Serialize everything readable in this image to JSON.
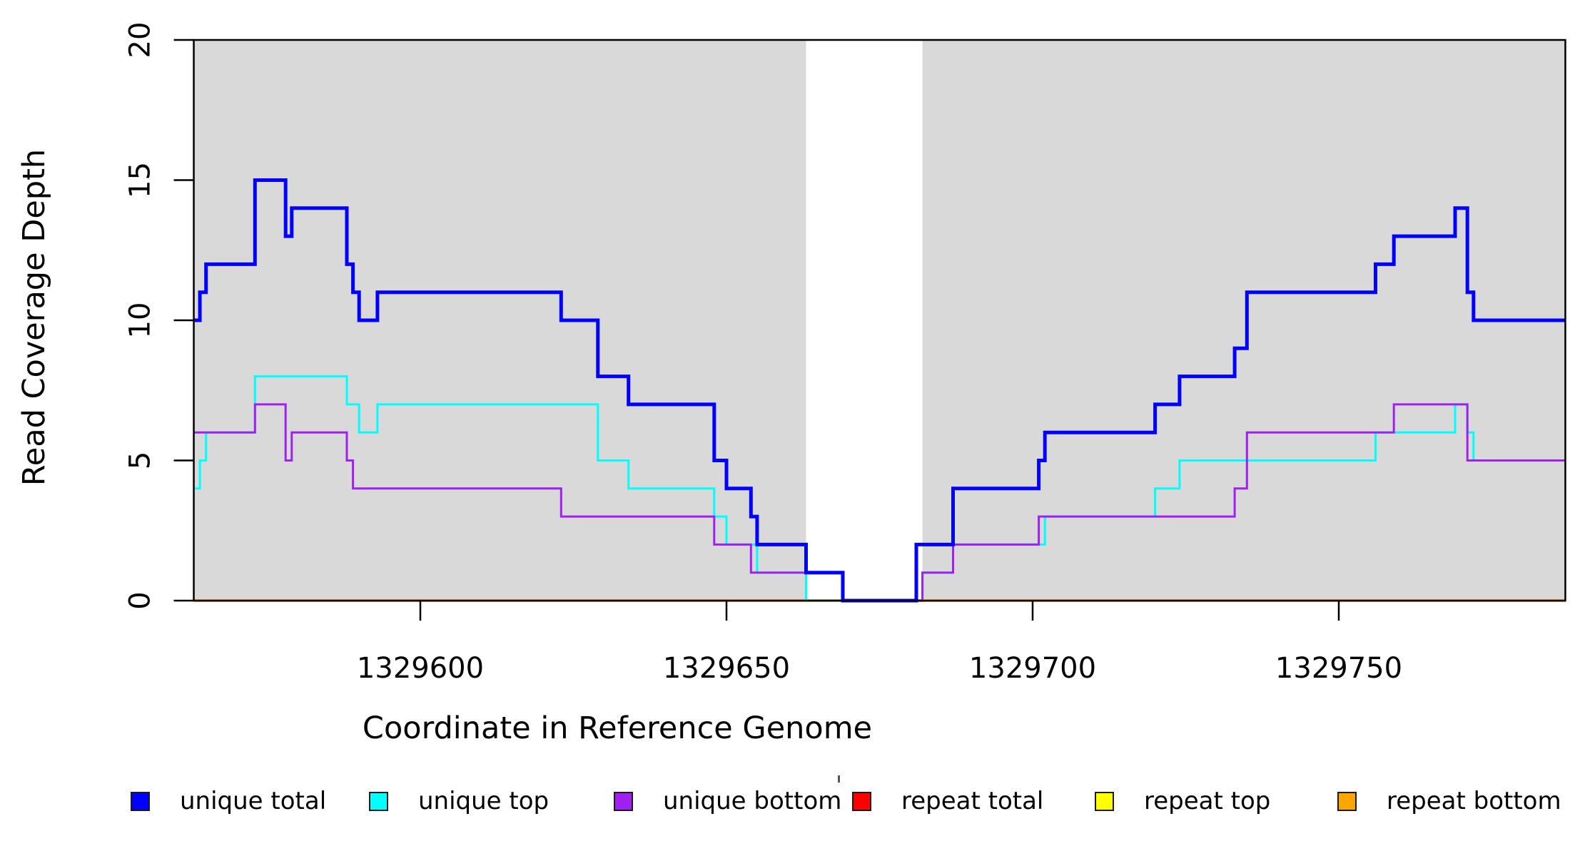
{
  "figure": {
    "xlabel": "Coordinate in Reference Genome",
    "ylabel": "Read Coverage Depth",
    "plot_background": "#ffffff",
    "shade_color": "#d9d9d9",
    "box_color": "#000000"
  },
  "chart_data": {
    "type": "line",
    "step": true,
    "title": "",
    "xlabel": "Coordinate in Reference Genome",
    "ylabel": "Read Coverage Depth",
    "xlim": [
      1329563,
      1329787
    ],
    "ylim": [
      0,
      20
    ],
    "grid": false,
    "legend_position": "bottom-horizontal",
    "x_ticks": [
      1329600,
      1329650,
      1329700,
      1329750
    ],
    "y_ticks": [
      0,
      5,
      10,
      15,
      20
    ],
    "shaded_regions": [
      {
        "from": 1329563,
        "to": 1329663
      },
      {
        "from": 1329682,
        "to": 1329787
      }
    ],
    "gap_region": {
      "from": 1329663,
      "to": 1329682
    },
    "series": [
      {
        "name": "repeat total",
        "color": "#ff0000",
        "width": 3,
        "steps": [
          [
            1329563,
            0
          ]
        ],
        "end": 1329787
      },
      {
        "name": "repeat top",
        "color": "#ffff00",
        "width": 3,
        "steps": [
          [
            1329563,
            0
          ]
        ],
        "end": 1329787
      },
      {
        "name": "repeat bottom",
        "color": "#ffa500",
        "width": 4,
        "steps": [
          [
            1329563,
            0
          ]
        ],
        "end": 1329787
      },
      {
        "name": "unique top",
        "color": "#00ffff",
        "width": 3,
        "steps": [
          [
            1329563,
            4
          ],
          [
            1329564,
            5
          ],
          [
            1329565,
            6
          ],
          [
            1329573,
            8
          ],
          [
            1329588,
            7
          ],
          [
            1329590,
            6
          ],
          [
            1329593,
            7
          ],
          [
            1329629,
            5
          ],
          [
            1329634,
            4
          ],
          [
            1329648,
            3
          ],
          [
            1329650,
            2
          ],
          [
            1329655,
            1
          ],
          [
            1329663,
            0
          ],
          [
            1329682,
            1
          ],
          [
            1329687,
            2
          ],
          [
            1329702,
            3
          ],
          [
            1329720,
            4
          ],
          [
            1329724,
            5
          ],
          [
            1329756,
            6
          ],
          [
            1329769,
            7
          ],
          [
            1329771,
            6
          ],
          [
            1329772,
            5
          ]
        ],
        "end": 1329787
      },
      {
        "name": "unique bottom",
        "color": "#a020f0",
        "width": 3,
        "steps": [
          [
            1329563,
            6
          ],
          [
            1329573,
            7
          ],
          [
            1329578,
            5
          ],
          [
            1329579,
            6
          ],
          [
            1329588,
            5
          ],
          [
            1329589,
            4
          ],
          [
            1329623,
            3
          ],
          [
            1329648,
            2
          ],
          [
            1329654,
            1
          ],
          [
            1329669,
            0
          ],
          [
            1329682,
            1
          ],
          [
            1329687,
            2
          ],
          [
            1329701,
            3
          ],
          [
            1329733,
            4
          ],
          [
            1329735,
            6
          ],
          [
            1329759,
            7
          ],
          [
            1329771,
            5
          ]
        ],
        "end": 1329787
      },
      {
        "name": "unique total",
        "color": "#0000ff",
        "width": 5,
        "steps": [
          [
            1329563,
            10
          ],
          [
            1329564,
            11
          ],
          [
            1329565,
            12
          ],
          [
            1329573,
            15
          ],
          [
            1329578,
            13
          ],
          [
            1329579,
            14
          ],
          [
            1329588,
            12
          ],
          [
            1329589,
            11
          ],
          [
            1329590,
            10
          ],
          [
            1329593,
            11
          ],
          [
            1329623,
            10
          ],
          [
            1329629,
            8
          ],
          [
            1329634,
            7
          ],
          [
            1329648,
            5
          ],
          [
            1329650,
            4
          ],
          [
            1329654,
            3
          ],
          [
            1329655,
            2
          ],
          [
            1329663,
            1
          ],
          [
            1329669,
            0
          ],
          [
            1329681,
            2
          ],
          [
            1329687,
            4
          ],
          [
            1329701,
            5
          ],
          [
            1329702,
            6
          ],
          [
            1329720,
            7
          ],
          [
            1329724,
            8
          ],
          [
            1329733,
            9
          ],
          [
            1329735,
            11
          ],
          [
            1329756,
            12
          ],
          [
            1329759,
            13
          ],
          [
            1329769,
            14
          ],
          [
            1329771,
            11
          ],
          [
            1329772,
            10
          ]
        ],
        "end": 1329787
      }
    ],
    "legend": [
      {
        "label": "unique total",
        "color": "#0000ff"
      },
      {
        "label": "unique top",
        "color": "#00ffff"
      },
      {
        "label": "unique bottom",
        "color": "#a020f0"
      },
      {
        "label": "repeat total",
        "color": "#ff0000"
      },
      {
        "label": "repeat top",
        "color": "#ffff00"
      },
      {
        "label": "repeat bottom",
        "color": "#ffa500"
      }
    ]
  }
}
